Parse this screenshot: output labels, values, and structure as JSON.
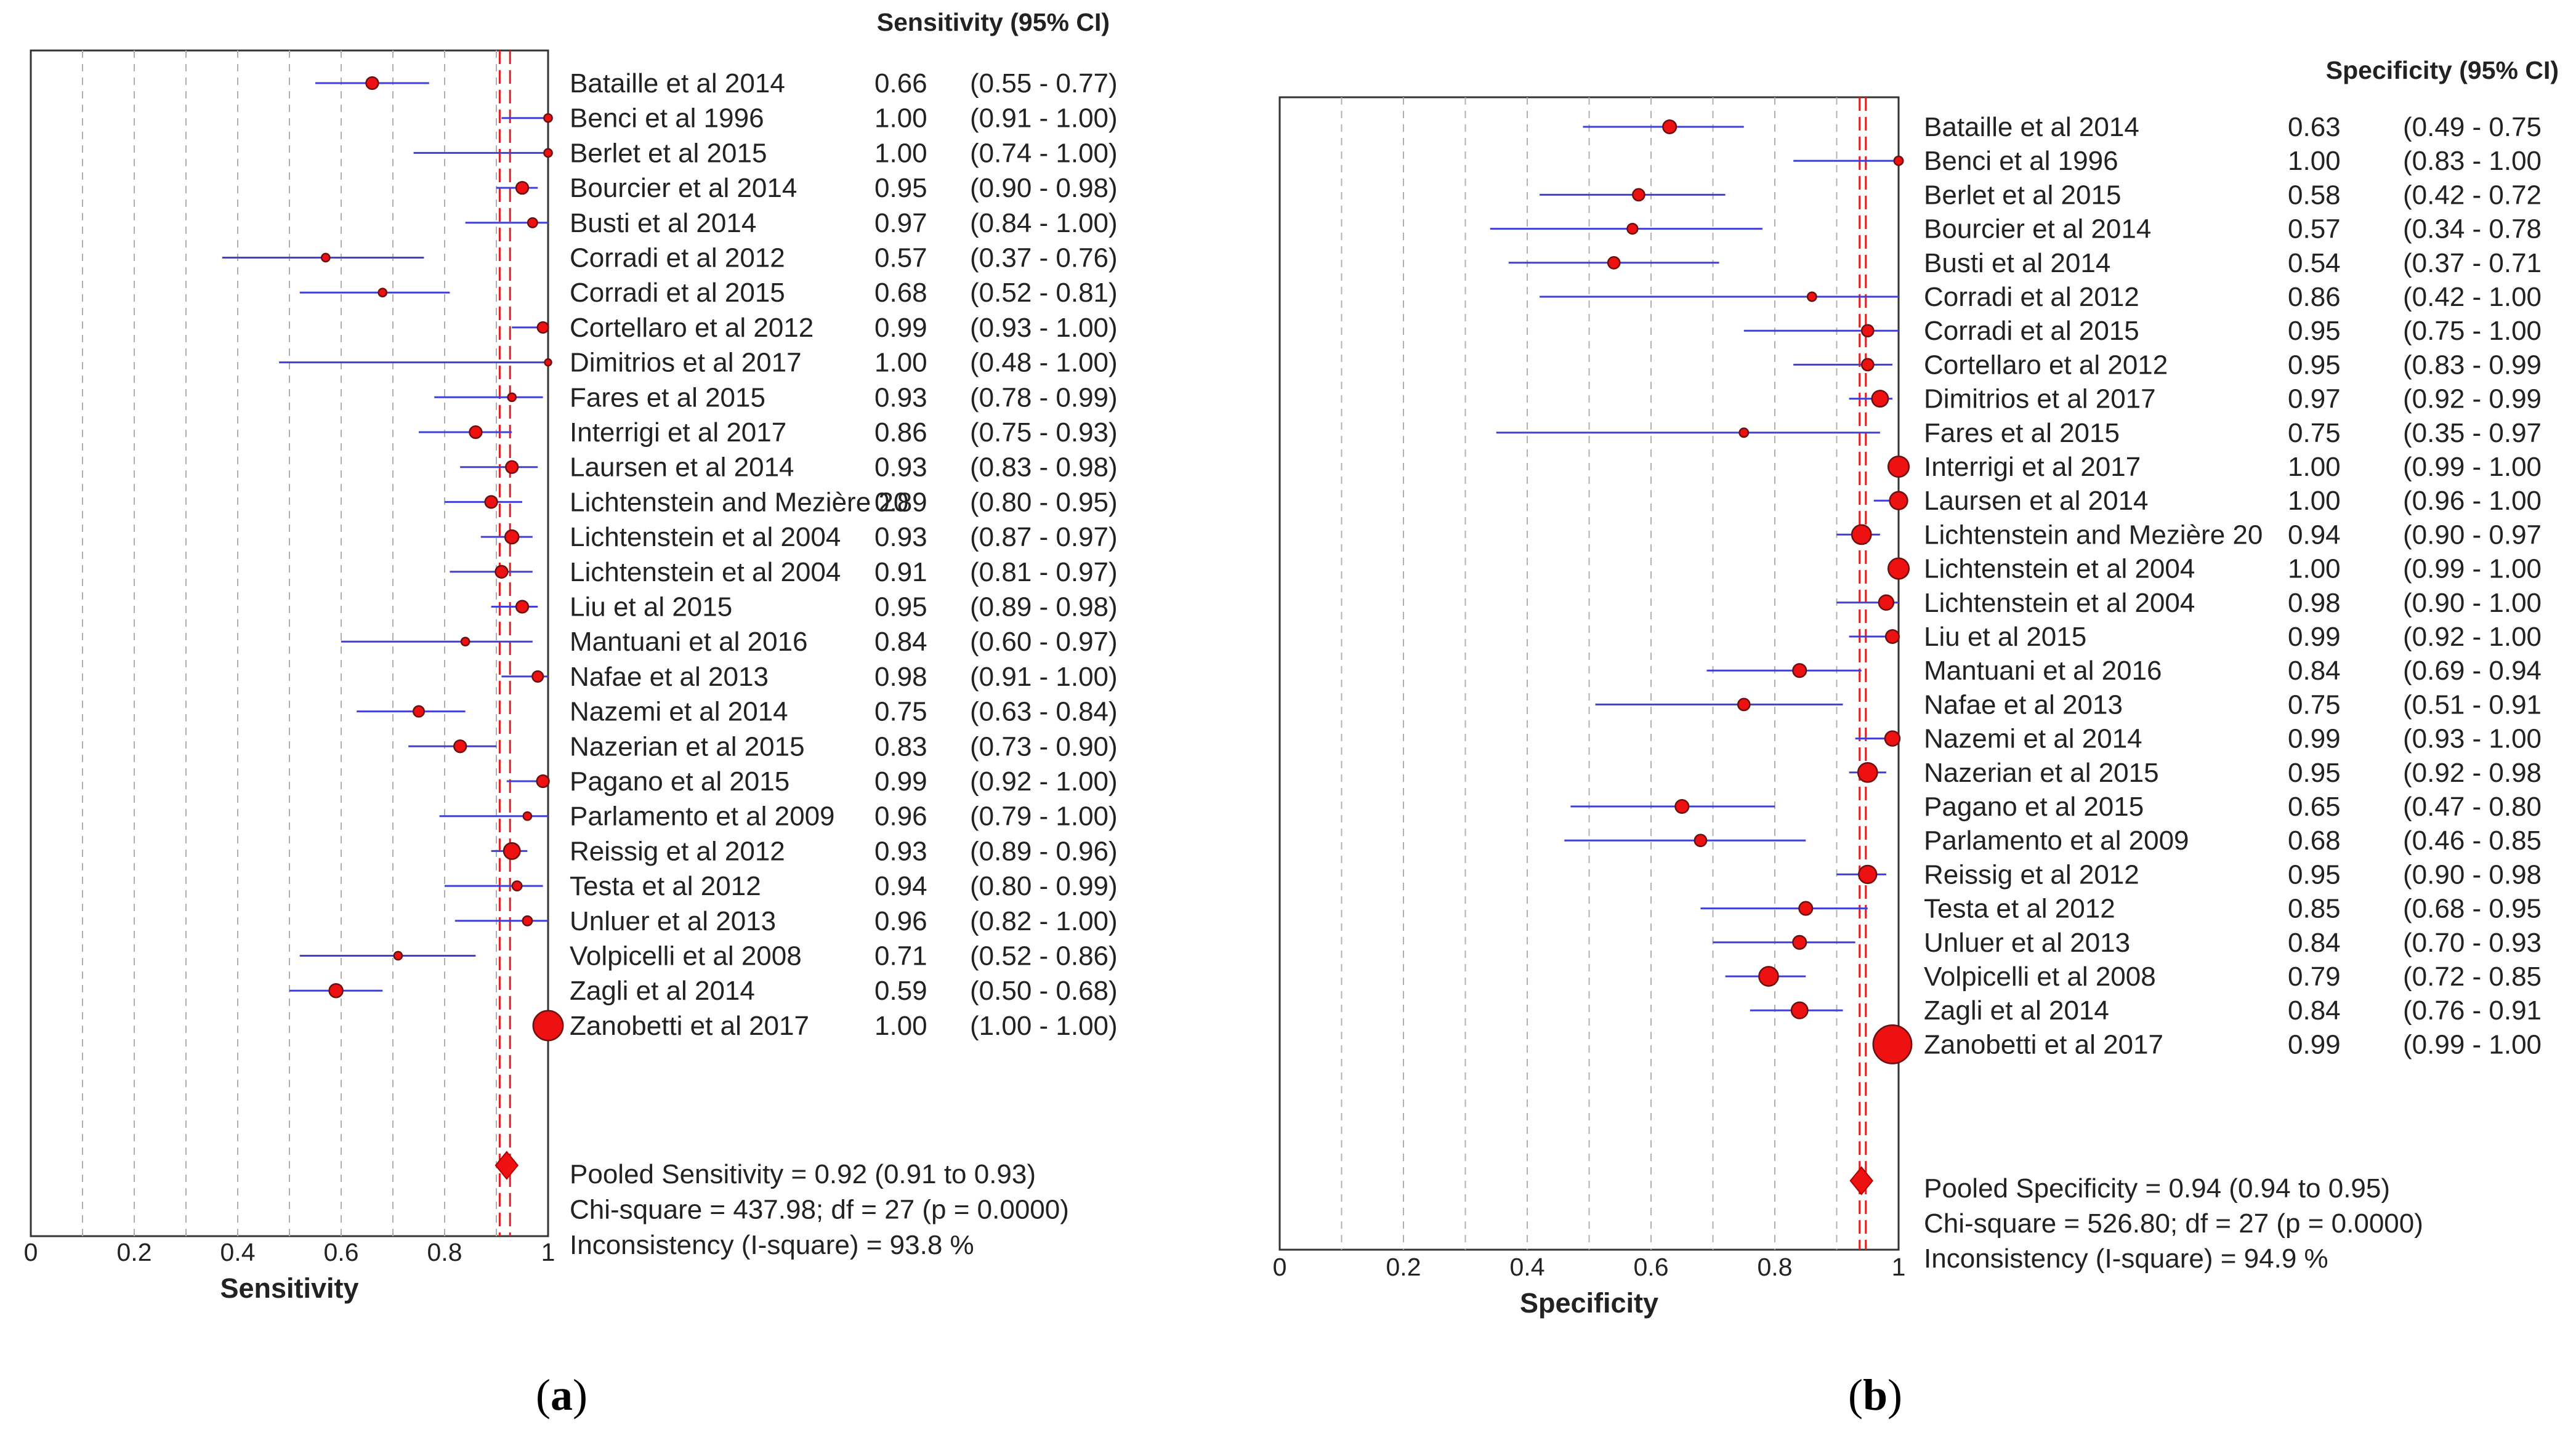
{
  "chart_data": [
    {
      "type": "forest",
      "panel_caption": "(a)",
      "caption_letter": "a",
      "header": "Sensitivity (95% CI)",
      "xlabel": "Sensitivity",
      "xlim": [
        0,
        1
      ],
      "ticks": [
        "0",
        "0.2",
        "0.4",
        "0.6",
        "0.8",
        "1"
      ],
      "tick_values": [
        0,
        0.2,
        0.4,
        0.6,
        0.8,
        1
      ],
      "pooled": {
        "estimate": 0.92,
        "lower": 0.91,
        "upper": 0.93
      },
      "summary_lines": [
        "Pooled Sensitivity = 0.92 (0.91 to 0.93)",
        "Chi-square = 437.98; df = 27 (p = 0.0000)",
        "Inconsistency (I-square) = 93.8 %"
      ],
      "studies": [
        {
          "name": "Bataille et al 2014",
          "est": 0.66,
          "lo": 0.55,
          "hi": 0.77,
          "value": "0.66",
          "ci": "(0.55 - 0.77)",
          "w": 0.9
        },
        {
          "name": "Benci et al 1996",
          "est": 1.0,
          "lo": 0.91,
          "hi": 1.0,
          "value": "1.00",
          "ci": "(0.91 - 1.00)",
          "w": 0.6
        },
        {
          "name": "Berlet et al 2015",
          "est": 1.0,
          "lo": 0.74,
          "hi": 1.0,
          "value": "1.00",
          "ci": "(0.74 - 1.00)",
          "w": 0.6
        },
        {
          "name": "Bourcier et al 2014",
          "est": 0.95,
          "lo": 0.9,
          "hi": 0.98,
          "value": "0.95",
          "ci": "(0.90 - 0.98)",
          "w": 0.9
        },
        {
          "name": "Busti et al 2014",
          "est": 0.97,
          "lo": 0.84,
          "hi": 1.0,
          "value": "0.97",
          "ci": "(0.84 - 1.00)",
          "w": 0.7
        },
        {
          "name": "Corradi et al 2012",
          "est": 0.57,
          "lo": 0.37,
          "hi": 0.76,
          "value": "0.57",
          "ci": "(0.37 - 0.76)",
          "w": 0.6
        },
        {
          "name": "Corradi et al 2015",
          "est": 0.68,
          "lo": 0.52,
          "hi": 0.81,
          "value": "0.68",
          "ci": "(0.52 - 0.81)",
          "w": 0.6
        },
        {
          "name": "Cortellaro et al 2012",
          "est": 0.99,
          "lo": 0.93,
          "hi": 1.0,
          "value": "0.99",
          "ci": "(0.93 - 1.00)",
          "w": 0.8
        },
        {
          "name": "Dimitrios et al 2017",
          "est": 1.0,
          "lo": 0.48,
          "hi": 1.0,
          "value": "1.00",
          "ci": "(0.48 - 1.00)",
          "w": 0.5
        },
        {
          "name": "Fares et al 2015",
          "est": 0.93,
          "lo": 0.78,
          "hi": 0.99,
          "value": "0.93",
          "ci": "(0.78 - 0.99)",
          "w": 0.6
        },
        {
          "name": "Interrigi et al 2017",
          "est": 0.86,
          "lo": 0.75,
          "hi": 0.93,
          "value": "0.86",
          "ci": "(0.75 - 0.93)",
          "w": 0.9
        },
        {
          "name": "Laursen et al 2014",
          "est": 0.93,
          "lo": 0.83,
          "hi": 0.98,
          "value": "0.93",
          "ci": "(0.83 - 0.98)",
          "w": 0.9
        },
        {
          "name": "Lichtenstein and Mezière 20",
          "est": 0.89,
          "lo": 0.8,
          "hi": 0.95,
          "value": "0.89",
          "ci": "(0.80 - 0.95)",
          "w": 0.9
        },
        {
          "name": "Lichtenstein et al 2004",
          "est": 0.93,
          "lo": 0.87,
          "hi": 0.97,
          "value": "0.93",
          "ci": "(0.87 - 0.97)",
          "w": 1.0
        },
        {
          "name": "Lichtenstein et al 2004",
          "est": 0.91,
          "lo": 0.81,
          "hi": 0.97,
          "value": "0.91",
          "ci": "(0.81 - 0.97)",
          "w": 0.9
        },
        {
          "name": "Liu et al 2015",
          "est": 0.95,
          "lo": 0.89,
          "hi": 0.98,
          "value": "0.95",
          "ci": "(0.89 - 0.98)",
          "w": 0.9
        },
        {
          "name": "Mantuani et al 2016",
          "est": 0.84,
          "lo": 0.6,
          "hi": 0.97,
          "value": "0.84",
          "ci": "(0.60 - 0.97)",
          "w": 0.6
        },
        {
          "name": "Nafae et al 2013",
          "est": 0.98,
          "lo": 0.91,
          "hi": 1.0,
          "value": "0.98",
          "ci": "(0.91 - 1.00)",
          "w": 0.8
        },
        {
          "name": "Nazemi et al 2014",
          "est": 0.75,
          "lo": 0.63,
          "hi": 0.84,
          "value": "0.75",
          "ci": "(0.63 - 0.84)",
          "w": 0.8
        },
        {
          "name": "Nazerian et al 2015",
          "est": 0.83,
          "lo": 0.73,
          "hi": 0.9,
          "value": "0.83",
          "ci": "(0.73 - 0.90)",
          "w": 0.9
        },
        {
          "name": "Pagano et al 2015",
          "est": 0.99,
          "lo": 0.92,
          "hi": 1.0,
          "value": "0.99",
          "ci": "(0.92 - 1.00)",
          "w": 0.9
        },
        {
          "name": "Parlamento et al 2009",
          "est": 0.96,
          "lo": 0.79,
          "hi": 1.0,
          "value": "0.96",
          "ci": "(0.79 - 1.00)",
          "w": 0.6
        },
        {
          "name": "Reissig et al 2012",
          "est": 0.93,
          "lo": 0.89,
          "hi": 0.96,
          "value": "0.93",
          "ci": "(0.89 - 0.96)",
          "w": 1.2
        },
        {
          "name": "Testa et al 2012",
          "est": 0.94,
          "lo": 0.8,
          "hi": 0.99,
          "value": "0.94",
          "ci": "(0.80 - 0.99)",
          "w": 0.7
        },
        {
          "name": "Unluer et al 2013",
          "est": 0.96,
          "lo": 0.82,
          "hi": 1.0,
          "value": "0.96",
          "ci": "(0.82 - 1.00)",
          "w": 0.7
        },
        {
          "name": "Volpicelli et al 2008",
          "est": 0.71,
          "lo": 0.52,
          "hi": 0.86,
          "value": "0.71",
          "ci": "(0.52 - 0.86)",
          "w": 0.6
        },
        {
          "name": "Zagli et al 2014",
          "est": 0.59,
          "lo": 0.5,
          "hi": 0.68,
          "value": "0.59",
          "ci": "(0.50 - 0.68)",
          "w": 1.0
        },
        {
          "name": "Zanobetti et al 2017",
          "est": 1.0,
          "lo": 1.0,
          "hi": 1.0,
          "value": "1.00",
          "ci": "(1.00 - 1.00)",
          "w": 2.2
        }
      ]
    },
    {
      "type": "forest",
      "panel_caption": "(b)",
      "caption_letter": "b",
      "header": "Specificity (95% CI)",
      "xlabel": "Specificity",
      "xlim": [
        0,
        1
      ],
      "ticks": [
        "0",
        "0.2",
        "0.4",
        "0.6",
        "0.8",
        "1"
      ],
      "tick_values": [
        0,
        0.2,
        0.4,
        0.6,
        0.8,
        1
      ],
      "pooled": {
        "estimate": 0.94,
        "lower": 0.94,
        "upper": 0.95
      },
      "summary_lines": [
        "Pooled Specificity = 0.94 (0.94 to 0.95)",
        "Chi-square = 526.80; df = 27 (p = 0.0000)",
        "Inconsistency (I-square) = 94.9 %"
      ],
      "studies": [
        {
          "name": "Bataille et al 2014",
          "est": 0.63,
          "lo": 0.49,
          "hi": 0.75,
          "value": "0.63",
          "ci": "(0.49 - 0.75",
          "w": 0.9
        },
        {
          "name": "Benci et al 1996",
          "est": 1.0,
          "lo": 0.83,
          "hi": 1.0,
          "value": "1.00",
          "ci": "(0.83 - 1.00",
          "w": 0.6
        },
        {
          "name": "Berlet et al 2015",
          "est": 0.58,
          "lo": 0.42,
          "hi": 0.72,
          "value": "0.58",
          "ci": "(0.42 - 0.72",
          "w": 0.8
        },
        {
          "name": "Bourcier et al 2014",
          "est": 0.57,
          "lo": 0.34,
          "hi": 0.78,
          "value": "0.57",
          "ci": "(0.34 - 0.78",
          "w": 0.7
        },
        {
          "name": "Busti et al 2014",
          "est": 0.54,
          "lo": 0.37,
          "hi": 0.71,
          "value": "0.54",
          "ci": "(0.37 - 0.71",
          "w": 0.8
        },
        {
          "name": "Corradi et al 2012",
          "est": 0.86,
          "lo": 0.42,
          "hi": 1.0,
          "value": "0.86",
          "ci": "(0.42 - 1.00",
          "w": 0.6
        },
        {
          "name": "Corradi et al 2015",
          "est": 0.95,
          "lo": 0.75,
          "hi": 1.0,
          "value": "0.95",
          "ci": "(0.75 - 1.00",
          "w": 0.8
        },
        {
          "name": "Cortellaro et al 2012",
          "est": 0.95,
          "lo": 0.83,
          "hi": 0.99,
          "value": "0.95",
          "ci": "(0.83 - 0.99",
          "w": 0.8
        },
        {
          "name": "Dimitrios et al 2017",
          "est": 0.97,
          "lo": 0.92,
          "hi": 0.99,
          "value": "0.97",
          "ci": "(0.92 - 0.99",
          "w": 1.1
        },
        {
          "name": "Fares et al 2015",
          "est": 0.75,
          "lo": 0.35,
          "hi": 0.97,
          "value": "0.75",
          "ci": "(0.35 - 0.97",
          "w": 0.6
        },
        {
          "name": "Interrigi et al 2017",
          "est": 1.0,
          "lo": 0.99,
          "hi": 1.0,
          "value": "1.00",
          "ci": "(0.99 - 1.00",
          "w": 1.4
        },
        {
          "name": "Laursen et al 2014",
          "est": 1.0,
          "lo": 0.96,
          "hi": 1.0,
          "value": "1.00",
          "ci": "(0.96 - 1.00",
          "w": 1.2
        },
        {
          "name": "Lichtenstein and Mezière 20",
          "est": 0.94,
          "lo": 0.9,
          "hi": 0.97,
          "value": "0.94",
          "ci": "(0.90 - 0.97",
          "w": 1.3
        },
        {
          "name": "Lichtenstein et al 2004",
          "est": 1.0,
          "lo": 0.99,
          "hi": 1.0,
          "value": "1.00",
          "ci": "(0.99 - 1.00",
          "w": 1.4
        },
        {
          "name": "Lichtenstein et al 2004",
          "est": 0.98,
          "lo": 0.9,
          "hi": 1.0,
          "value": "0.98",
          "ci": "(0.90 - 1.00",
          "w": 1.0
        },
        {
          "name": "Liu et al 2015",
          "est": 0.99,
          "lo": 0.92,
          "hi": 1.0,
          "value": "0.99",
          "ci": "(0.92 - 1.00",
          "w": 0.9
        },
        {
          "name": "Mantuani et al 2016",
          "est": 0.84,
          "lo": 0.69,
          "hi": 0.94,
          "value": "0.84",
          "ci": "(0.69 - 0.94",
          "w": 0.9
        },
        {
          "name": "Nafae et al 2013",
          "est": 0.75,
          "lo": 0.51,
          "hi": 0.91,
          "value": "0.75",
          "ci": "(0.51 - 0.91",
          "w": 0.8
        },
        {
          "name": "Nazemi et al 2014",
          "est": 0.99,
          "lo": 0.93,
          "hi": 1.0,
          "value": "0.99",
          "ci": "(0.93 - 1.00",
          "w": 1.0
        },
        {
          "name": "Nazerian et al 2015",
          "est": 0.95,
          "lo": 0.92,
          "hi": 0.98,
          "value": "0.95",
          "ci": "(0.92 - 0.98",
          "w": 1.3
        },
        {
          "name": "Pagano et al 2015",
          "est": 0.65,
          "lo": 0.47,
          "hi": 0.8,
          "value": "0.65",
          "ci": "(0.47 - 0.80",
          "w": 0.9
        },
        {
          "name": "Parlamento et al 2009",
          "est": 0.68,
          "lo": 0.46,
          "hi": 0.85,
          "value": "0.68",
          "ci": "(0.46 - 0.85",
          "w": 0.8
        },
        {
          "name": "Reissig et al 2012",
          "est": 0.95,
          "lo": 0.9,
          "hi": 0.98,
          "value": "0.95",
          "ci": "(0.90 - 0.98",
          "w": 1.2
        },
        {
          "name": "Testa et al 2012",
          "est": 0.85,
          "lo": 0.68,
          "hi": 0.95,
          "value": "0.85",
          "ci": "(0.68 - 0.95",
          "w": 0.9
        },
        {
          "name": "Unluer et al 2013",
          "est": 0.84,
          "lo": 0.7,
          "hi": 0.93,
          "value": "0.84",
          "ci": "(0.70 - 0.93",
          "w": 0.9
        },
        {
          "name": "Volpicelli et al 2008",
          "est": 0.79,
          "lo": 0.72,
          "hi": 0.85,
          "value": "0.79",
          "ci": "(0.72 - 0.85",
          "w": 1.3
        },
        {
          "name": "Zagli et al 2014",
          "est": 0.84,
          "lo": 0.76,
          "hi": 0.91,
          "value": "0.84",
          "ci": "(0.76 - 0.91",
          "w": 1.1
        },
        {
          "name": "Zanobetti et al 2017",
          "est": 0.99,
          "lo": 0.99,
          "hi": 1.0,
          "value": "0.99",
          "ci": "(0.99 - 1.00",
          "w": 2.6
        }
      ]
    }
  ],
  "colors": {
    "marker_fill": "#ee1111",
    "marker_stroke": "#6a1010",
    "ci_line": "#4040d8",
    "pooled_line": "#e02020",
    "grid": "#b0b0b0",
    "frame": "#333333"
  }
}
